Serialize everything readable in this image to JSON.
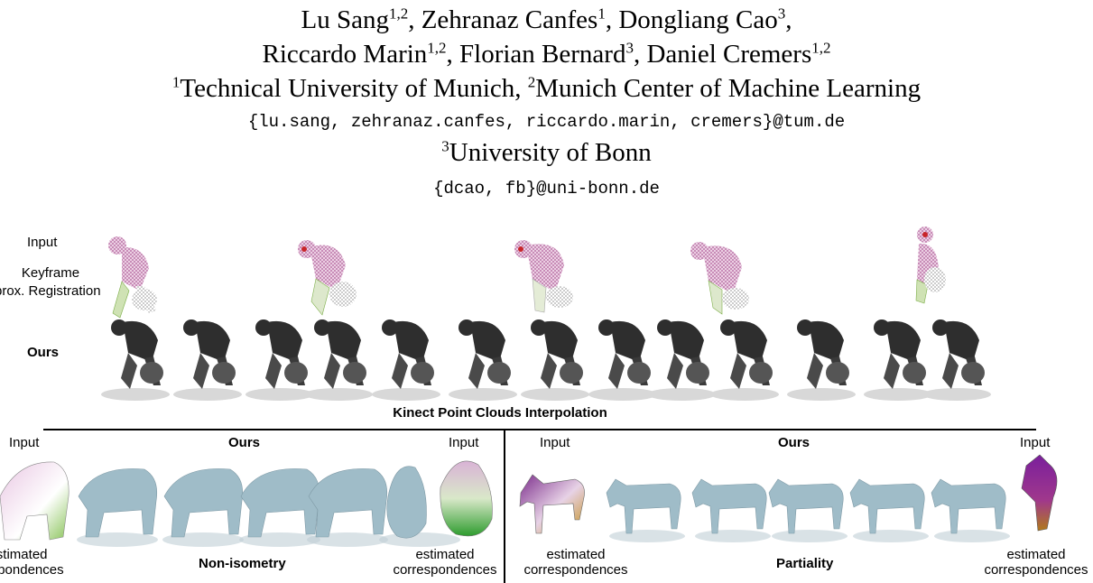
{
  "header": {
    "authors_line1": [
      {
        "name": "Lu Sang",
        "sup": "1,2"
      },
      {
        "sep": ", "
      },
      {
        "name": "Zehranaz Canfes",
        "sup": "1"
      },
      {
        "sep": ", "
      },
      {
        "name": "Dongliang Cao",
        "sup": "3"
      },
      {
        "sep": ","
      }
    ],
    "authors_line2": [
      {
        "name": "Riccardo Marin",
        "sup": "1,2"
      },
      {
        "sep": ", "
      },
      {
        "name": "Florian Bernard",
        "sup": "3"
      },
      {
        "sep": ", "
      },
      {
        "name": "Daniel Cremers",
        "sup": "1,2"
      }
    ],
    "affil1_sup": "1",
    "affil1_name": "Technical University of Munich, ",
    "affil2_sup": "2",
    "affil2_name": "Munich Center of Machine Learning",
    "email1": "{lu.sang, zehranaz.canfes, riccardo.marin, cremers}@tum.de",
    "affil3_sup": "3",
    "affil3_name": "University of Bonn",
    "email2": "{dcao, fb}@uni-bonn.de"
  },
  "top_panel": {
    "row_input_label": "Input",
    "row_keyframe_label_1": "Keyframe",
    "row_keyframe_label_2": "prox. Registration",
    "row_ours_label": "Ours",
    "caption": "Kinect Point Clouds Interpolation"
  },
  "bottom_left": {
    "input_left": "Input",
    "ours": "Ours",
    "input_right": "Input",
    "corr_left_1": "estimated",
    "corr_left_2": "espondences",
    "caption": "Non-isometry",
    "corr_right_1": "estimated",
    "corr_right_2": "correspondences"
  },
  "bottom_right": {
    "input_left": "Input",
    "ours": "Ours",
    "input_right": "Input",
    "corr_left_1": "estimated",
    "corr_left_2": "correspondences",
    "caption": "Partiality",
    "corr_right_1": "estimated",
    "corr_right_2": "correspondences"
  },
  "colors": {
    "mesh_blue": "#9fbcc8",
    "mesh_shadow": "#bfcfd6",
    "person_dark": "#2e2e2e",
    "wire_pink": "#b0609a",
    "wire_green": "#7cae48",
    "wire_gray": "#a8a8a8",
    "wire_purple": "#8a2a8c",
    "wire_orange": "#b8821c"
  }
}
